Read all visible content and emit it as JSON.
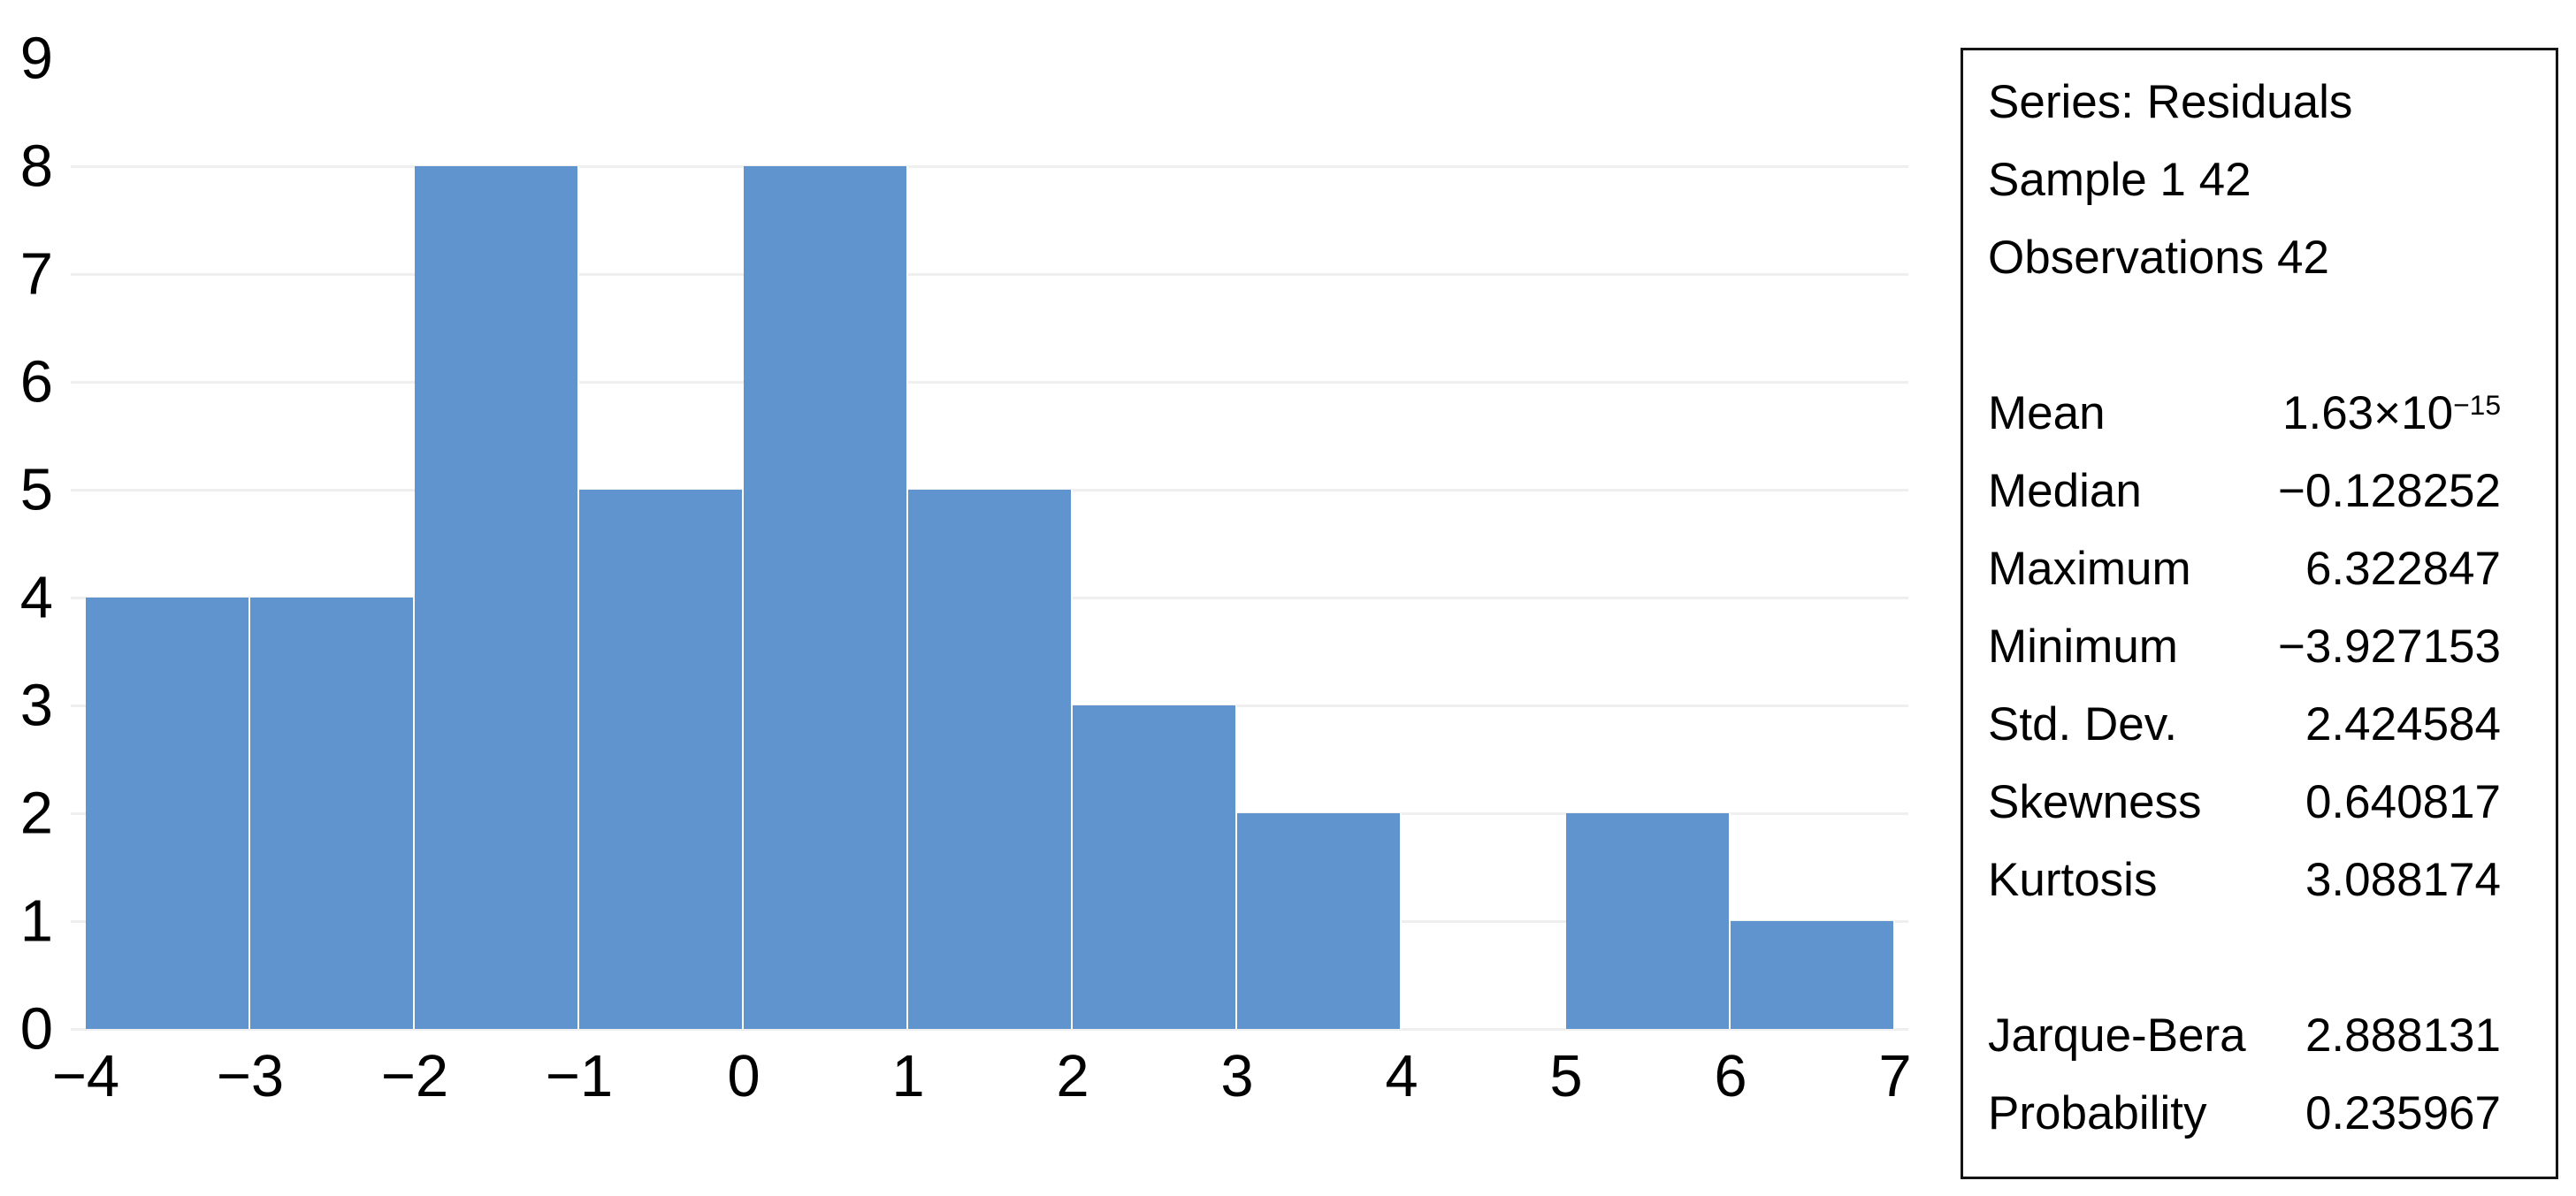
{
  "chart_data": {
    "type": "bar",
    "subtype": "histogram",
    "bin_edges": [
      -4,
      -3,
      -2,
      -1,
      0,
      1,
      2,
      3,
      4,
      5,
      6,
      7
    ],
    "x_tick_labels": [
      "−4",
      "−3",
      "−2",
      "−1",
      "0",
      "1",
      "2",
      "3",
      "4",
      "5",
      "6",
      "7"
    ],
    "values": [
      4,
      4,
      8,
      5,
      8,
      5,
      3,
      2,
      0,
      2,
      1
    ],
    "y_ticks": [
      0,
      1,
      2,
      3,
      4,
      5,
      6,
      7,
      8,
      9
    ],
    "xlim": [
      -4,
      7
    ],
    "ylim": [
      0,
      9
    ],
    "grid": "horizontal",
    "legend_position": "none",
    "bar_color": "#6094CE",
    "bar_separator_color": "#FFFFFF",
    "gridline_color": "#EFEFEF",
    "tick_label_color": "#000000"
  },
  "stats_panel": {
    "border_color": "#141414",
    "header_lines": [
      "Series: Residuals",
      "Sample 1 42",
      "Observations 42"
    ],
    "stats": [
      {
        "label": "Mean",
        "value_base": "1.63×10",
        "value_exp": "−15"
      },
      {
        "label": "Median",
        "value": "−0.128252"
      },
      {
        "label": "Maximum",
        "value": "6.322847"
      },
      {
        "label": "Minimum",
        "value": "−3.927153"
      },
      {
        "label": "Std. Dev.",
        "value": "2.424584"
      },
      {
        "label": "Skewness",
        "value": "0.640817"
      },
      {
        "label": "Kurtosis",
        "value": "3.088174"
      }
    ],
    "tests": [
      {
        "label": "Jarque-Bera",
        "value": "2.888131"
      },
      {
        "label": "Probability",
        "value": "0.235967"
      }
    ]
  }
}
